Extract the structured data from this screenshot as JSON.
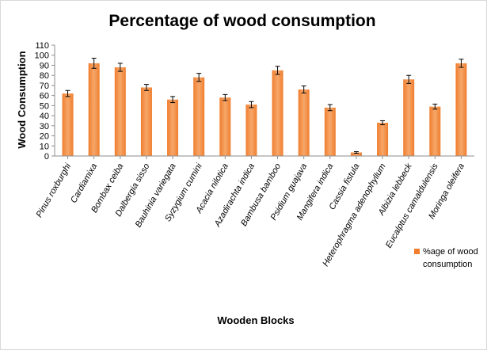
{
  "chart_data": {
    "type": "bar",
    "title": "Percentage of wood consumption",
    "xlabel": "Wooden Blocks",
    "ylabel": "Wood Consumption",
    "ylim": [
      0,
      110
    ],
    "yticks": [
      0,
      10,
      20,
      30,
      40,
      50,
      60,
      70,
      80,
      90,
      100,
      110
    ],
    "grid": false,
    "legend_position": "right",
    "colors": {
      "bar": "#f07e2e",
      "bar_light": "#f6a76a",
      "error_bar": "#000000"
    },
    "categories": [
      "Pinus roxburghi",
      "Cardiamixa",
      "Bombax ceiba",
      "Dalbergia sisso",
      "Bauhinia variegata",
      "Syzygium cumini",
      "Acacia nilotica",
      "Azadirachta indica",
      "Bambusa bamboo",
      "Psidium guajava",
      "Mangifera indica",
      "Cassia fistula",
      "Heterophragma adenophyllum",
      "Albizia lebbeck",
      "Eucalptus camaldulensis",
      "Moringa oleifera"
    ],
    "series": [
      {
        "name": "%age of wood consumption",
        "legend_lines": [
          "%age of wood",
          "consumption"
        ],
        "values": [
          62,
          92,
          88,
          68,
          56,
          78,
          58,
          51,
          85,
          66,
          48,
          3.5,
          33,
          76,
          49,
          92
        ],
        "errors": [
          3,
          5,
          4,
          3,
          3,
          4,
          3,
          3,
          4,
          3.5,
          3,
          0.8,
          2,
          4,
          2.5,
          4
        ]
      }
    ]
  }
}
